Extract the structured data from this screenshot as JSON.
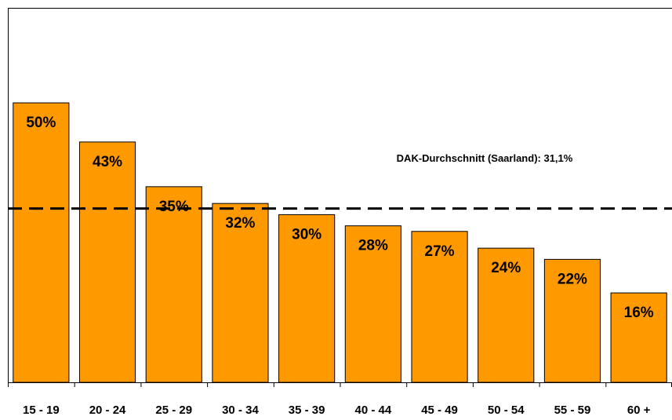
{
  "chart_data": {
    "type": "bar",
    "categories": [
      "15 - 19",
      "20 - 24",
      "25 - 29",
      "30 - 34",
      "35 - 39",
      "40 - 44",
      "45 - 49",
      "50 - 54",
      "55 - 59",
      "60 +"
    ],
    "values": [
      50,
      43,
      35,
      32,
      30,
      28,
      27,
      24,
      22,
      16
    ],
    "value_labels": [
      "50%",
      "43%",
      "35%",
      "32%",
      "30%",
      "28%",
      "27%",
      "24%",
      "22%",
      "16%"
    ],
    "color": "#ff9900",
    "ylim": [
      0,
      67
    ],
    "reference_line": {
      "value": 31.1,
      "label": "DAK-Durchschnitt (Saarland): 31,1%"
    }
  }
}
